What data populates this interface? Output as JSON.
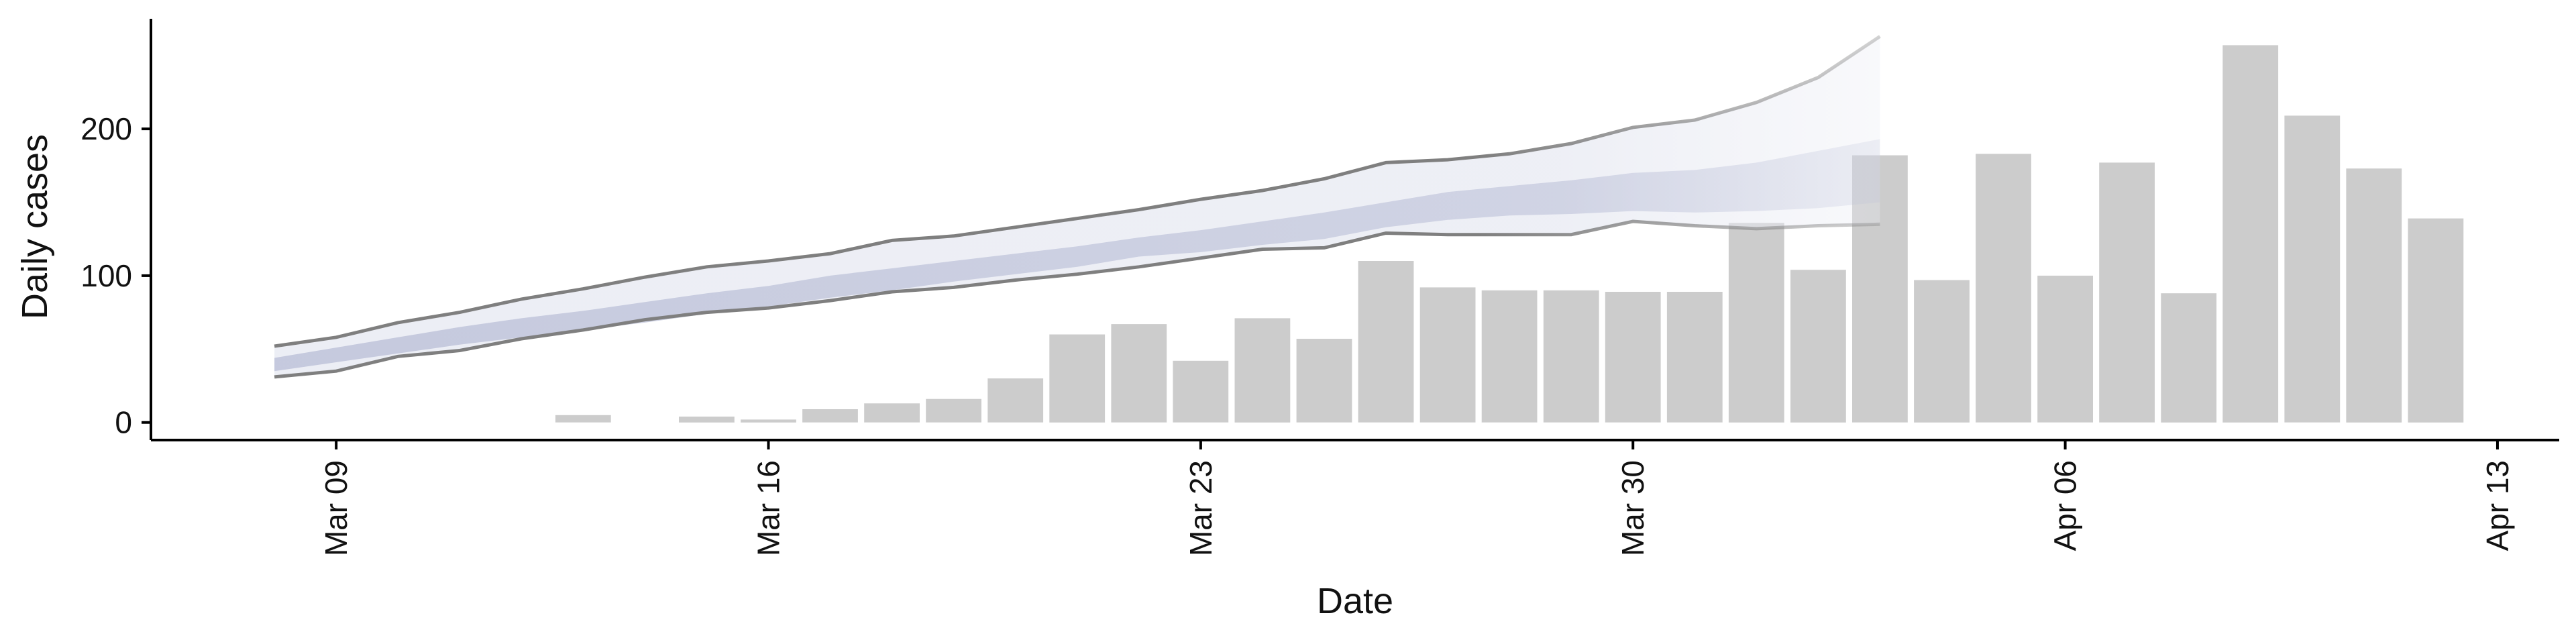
{
  "chart_data": {
    "type": "bar",
    "xlabel": "Date",
    "ylabel": "Daily cases",
    "x_tick_labels": [
      "Mar 09",
      "Mar 16",
      "Mar 23",
      "Mar 30",
      "Apr 06",
      "Apr 13"
    ],
    "x_tick_dates": [
      "2020-03-09",
      "2020-03-16",
      "2020-03-23",
      "2020-03-30",
      "2020-04-06",
      "2020-04-13"
    ],
    "y_tick_labels": [
      "0",
      "100",
      "200"
    ],
    "y_ticks": [
      0,
      100,
      200
    ],
    "xlim": [
      "2020-03-06",
      "2020-04-14"
    ],
    "ylim": [
      -12,
      275
    ],
    "grid": false,
    "colors": {
      "bars": "#cccccc",
      "bounds_line": "#7f7f7f",
      "ribbon": "#b8bdd6",
      "axis": "#000000"
    },
    "bars": {
      "dates": [
        "2020-03-13",
        "2020-03-14",
        "2020-03-15",
        "2020-03-16",
        "2020-03-17",
        "2020-03-18",
        "2020-03-19",
        "2020-03-20",
        "2020-03-21",
        "2020-03-22",
        "2020-03-23",
        "2020-03-24",
        "2020-03-25",
        "2020-03-26",
        "2020-03-27",
        "2020-03-28",
        "2020-03-29",
        "2020-03-30",
        "2020-03-31",
        "2020-04-01",
        "2020-04-02",
        "2020-04-03",
        "2020-04-04",
        "2020-04-05",
        "2020-04-06",
        "2020-04-07",
        "2020-04-08",
        "2020-04-09",
        "2020-04-10",
        "2020-04-11",
        "2020-04-12"
      ],
      "values": [
        5,
        0,
        4,
        2,
        9,
        13,
        16,
        30,
        60,
        67,
        42,
        71,
        57,
        110,
        92,
        90,
        90,
        89,
        89,
        136,
        104,
        182,
        97,
        183,
        100,
        177,
        88,
        257,
        209,
        173,
        139
      ]
    },
    "nowcast": {
      "dates": [
        "2020-03-08",
        "2020-03-09",
        "2020-03-10",
        "2020-03-11",
        "2020-03-12",
        "2020-03-13",
        "2020-03-14",
        "2020-03-15",
        "2020-03-16",
        "2020-03-17",
        "2020-03-18",
        "2020-03-19",
        "2020-03-20",
        "2020-03-21",
        "2020-03-22",
        "2020-03-23",
        "2020-03-24",
        "2020-03-25",
        "2020-03-26",
        "2020-03-27",
        "2020-03-28",
        "2020-03-29",
        "2020-03-30",
        "2020-03-31",
        "2020-04-01",
        "2020-04-02",
        "2020-04-03"
      ],
      "upper": [
        52,
        58,
        68,
        75,
        84,
        91,
        99,
        106,
        110,
        115,
        124,
        127,
        133,
        139,
        145,
        152,
        158,
        166,
        177,
        179,
        183,
        190,
        201,
        206,
        218,
        235,
        263
      ],
      "lower": [
        31,
        35,
        45,
        49,
        57,
        63,
        70,
        75,
        78,
        83,
        89,
        92,
        97,
        101,
        106,
        112,
        118,
        119,
        129,
        128,
        128,
        128,
        137,
        134,
        132,
        134,
        135
      ],
      "inner_upper": [
        44,
        51,
        58,
        65,
        71,
        76,
        82,
        88,
        93,
        100,
        105,
        110,
        115,
        120,
        126,
        131,
        137,
        143,
        150,
        157,
        161,
        165,
        170,
        172,
        177,
        185,
        193
      ],
      "inner_lower": [
        35,
        41,
        47,
        53,
        58,
        63,
        68,
        74,
        79,
        85,
        90,
        96,
        101,
        106,
        113,
        116,
        121,
        125,
        133,
        138,
        141,
        142,
        144,
        143,
        144,
        146,
        150
      ]
    }
  }
}
